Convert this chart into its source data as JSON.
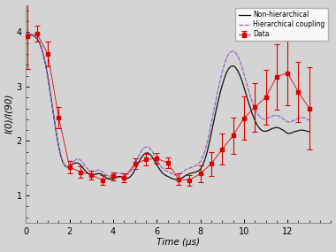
{
  "title": "",
  "xlabel": "Time (μs)",
  "ylabel": "I(0)/I(90)",
  "xlim": [
    0,
    14
  ],
  "ylim": [
    0.5,
    4.5
  ],
  "yticks": [
    1,
    2,
    3,
    4
  ],
  "xticks": [
    0,
    2,
    4,
    6,
    8,
    10,
    12
  ],
  "bg_color": "#d4d4d4",
  "hierarchical_color": "#9966bb",
  "nonhierarchical_color": "#111111",
  "data_color": "#dd0000",
  "data_x": [
    0.05,
    0.5,
    1.0,
    1.5,
    2.0,
    2.5,
    3.0,
    3.5,
    4.0,
    4.5,
    5.0,
    5.5,
    6.0,
    6.5,
    7.0,
    7.5,
    8.0,
    8.5,
    9.0,
    9.5,
    10.0,
    10.5,
    11.0,
    11.5,
    12.0,
    12.5,
    13.0
  ],
  "data_y": [
    3.92,
    3.97,
    3.6,
    2.43,
    1.52,
    1.43,
    1.38,
    1.28,
    1.35,
    1.33,
    1.58,
    1.66,
    1.68,
    1.6,
    1.3,
    1.28,
    1.4,
    1.58,
    1.85,
    2.1,
    2.42,
    2.62,
    2.8,
    3.18,
    3.25,
    2.9,
    2.6
  ],
  "data_yerr": [
    0.6,
    0.15,
    0.22,
    0.2,
    0.12,
    0.1,
    0.08,
    0.09,
    0.08,
    0.08,
    0.1,
    0.1,
    0.1,
    0.1,
    0.1,
    0.1,
    0.15,
    0.22,
    0.28,
    0.33,
    0.4,
    0.45,
    0.5,
    0.6,
    0.6,
    0.55,
    0.75
  ],
  "hier_x": [
    0.0,
    0.1,
    0.2,
    0.3,
    0.4,
    0.5,
    0.6,
    0.7,
    0.8,
    0.9,
    1.0,
    1.1,
    1.2,
    1.3,
    1.4,
    1.5,
    1.6,
    1.7,
    1.8,
    1.9,
    2.0,
    2.1,
    2.2,
    2.3,
    2.4,
    2.5,
    2.6,
    2.7,
    2.8,
    2.9,
    3.0,
    3.1,
    3.2,
    3.3,
    3.4,
    3.5,
    3.6,
    3.7,
    3.8,
    3.9,
    4.0,
    4.1,
    4.2,
    4.3,
    4.4,
    4.5,
    4.6,
    4.7,
    4.8,
    4.9,
    5.0,
    5.1,
    5.2,
    5.3,
    5.4,
    5.5,
    5.6,
    5.7,
    5.8,
    5.9,
    6.0,
    6.1,
    6.2,
    6.3,
    6.4,
    6.5,
    6.6,
    6.7,
    6.8,
    6.9,
    7.0,
    7.1,
    7.2,
    7.3,
    7.4,
    7.5,
    7.6,
    7.7,
    7.8,
    7.9,
    8.0,
    8.1,
    8.2,
    8.3,
    8.4,
    8.5,
    8.6,
    8.7,
    8.8,
    8.9,
    9.0,
    9.1,
    9.2,
    9.3,
    9.4,
    9.5,
    9.6,
    9.7,
    9.8,
    9.9,
    10.0,
    10.1,
    10.2,
    10.3,
    10.4,
    10.5,
    10.6,
    10.7,
    10.8,
    10.9,
    11.0,
    11.1,
    11.2,
    11.3,
    11.4,
    11.5,
    11.6,
    11.7,
    11.8,
    11.9,
    12.0,
    12.1,
    12.2,
    12.3,
    12.4,
    12.5,
    12.6,
    12.7,
    12.8,
    12.9,
    13.0
  ],
  "hier_y": [
    3.95,
    3.97,
    3.96,
    3.94,
    3.92,
    3.88,
    3.82,
    3.72,
    3.58,
    3.4,
    3.18,
    2.92,
    2.65,
    2.38,
    2.12,
    1.9,
    1.72,
    1.6,
    1.54,
    1.52,
    1.54,
    1.58,
    1.63,
    1.66,
    1.67,
    1.65,
    1.6,
    1.55,
    1.5,
    1.46,
    1.44,
    1.44,
    1.45,
    1.47,
    1.46,
    1.44,
    1.4,
    1.37,
    1.36,
    1.36,
    1.37,
    1.39,
    1.41,
    1.41,
    1.4,
    1.38,
    1.38,
    1.4,
    1.44,
    1.5,
    1.58,
    1.67,
    1.75,
    1.82,
    1.87,
    1.89,
    1.89,
    1.86,
    1.8,
    1.73,
    1.65,
    1.58,
    1.53,
    1.49,
    1.46,
    1.44,
    1.42,
    1.4,
    1.38,
    1.37,
    1.38,
    1.4,
    1.43,
    1.46,
    1.49,
    1.5,
    1.52,
    1.53,
    1.55,
    1.58,
    1.62,
    1.7,
    1.8,
    1.95,
    2.12,
    2.32,
    2.52,
    2.72,
    2.92,
    3.1,
    3.26,
    3.4,
    3.52,
    3.6,
    3.64,
    3.65,
    3.63,
    3.57,
    3.49,
    3.38,
    3.24,
    3.1,
    2.95,
    2.82,
    2.7,
    2.6,
    2.52,
    2.46,
    2.42,
    2.4,
    2.4,
    2.42,
    2.44,
    2.46,
    2.47,
    2.47,
    2.46,
    2.44,
    2.41,
    2.38,
    2.35,
    2.35,
    2.36,
    2.38,
    2.4,
    2.42,
    2.43,
    2.43,
    2.42,
    2.4,
    2.38
  ],
  "nonhier_x": [
    0.0,
    0.1,
    0.2,
    0.3,
    0.4,
    0.5,
    0.6,
    0.7,
    0.8,
    0.9,
    1.0,
    1.1,
    1.2,
    1.3,
    1.4,
    1.5,
    1.6,
    1.7,
    1.8,
    1.9,
    2.0,
    2.1,
    2.2,
    2.3,
    2.4,
    2.5,
    2.6,
    2.7,
    2.8,
    2.9,
    3.0,
    3.1,
    3.2,
    3.3,
    3.4,
    3.5,
    3.6,
    3.7,
    3.8,
    3.9,
    4.0,
    4.1,
    4.2,
    4.3,
    4.4,
    4.5,
    4.6,
    4.7,
    4.8,
    4.9,
    5.0,
    5.1,
    5.2,
    5.3,
    5.4,
    5.5,
    5.6,
    5.7,
    5.8,
    5.9,
    6.0,
    6.1,
    6.2,
    6.3,
    6.4,
    6.5,
    6.6,
    6.7,
    6.8,
    6.9,
    7.0,
    7.1,
    7.2,
    7.3,
    7.4,
    7.5,
    7.6,
    7.7,
    7.8,
    7.9,
    8.0,
    8.1,
    8.2,
    8.3,
    8.4,
    8.5,
    8.6,
    8.7,
    8.8,
    8.9,
    9.0,
    9.1,
    9.2,
    9.3,
    9.4,
    9.5,
    9.6,
    9.7,
    9.8,
    9.9,
    10.0,
    10.1,
    10.2,
    10.3,
    10.4,
    10.5,
    10.6,
    10.7,
    10.8,
    10.9,
    11.0,
    11.1,
    11.2,
    11.3,
    11.4,
    11.5,
    11.6,
    11.7,
    11.8,
    11.9,
    12.0,
    12.1,
    12.2,
    12.3,
    12.4,
    12.5,
    12.6,
    12.7,
    12.8,
    12.9,
    13.0
  ],
  "nonhier_y": [
    3.95,
    3.97,
    3.96,
    3.94,
    3.92,
    3.88,
    3.82,
    3.72,
    3.58,
    3.4,
    3.18,
    2.92,
    2.65,
    2.38,
    2.12,
    1.9,
    1.72,
    1.6,
    1.54,
    1.52,
    1.54,
    1.57,
    1.59,
    1.6,
    1.59,
    1.56,
    1.51,
    1.46,
    1.42,
    1.39,
    1.38,
    1.38,
    1.39,
    1.4,
    1.4,
    1.38,
    1.35,
    1.32,
    1.3,
    1.3,
    1.3,
    1.32,
    1.34,
    1.35,
    1.34,
    1.32,
    1.31,
    1.32,
    1.35,
    1.4,
    1.47,
    1.55,
    1.63,
    1.7,
    1.75,
    1.78,
    1.78,
    1.75,
    1.7,
    1.63,
    1.56,
    1.5,
    1.44,
    1.4,
    1.37,
    1.35,
    1.33,
    1.31,
    1.3,
    1.29,
    1.29,
    1.31,
    1.33,
    1.36,
    1.38,
    1.4,
    1.41,
    1.42,
    1.43,
    1.45,
    1.48,
    1.55,
    1.65,
    1.78,
    1.95,
    2.14,
    2.33,
    2.52,
    2.7,
    2.87,
    3.02,
    3.15,
    3.26,
    3.33,
    3.37,
    3.38,
    3.36,
    3.3,
    3.22,
    3.12,
    2.99,
    2.86,
    2.72,
    2.6,
    2.48,
    2.38,
    2.3,
    2.24,
    2.2,
    2.18,
    2.18,
    2.19,
    2.21,
    2.23,
    2.24,
    2.25,
    2.24,
    2.22,
    2.2,
    2.17,
    2.14,
    2.14,
    2.15,
    2.17,
    2.18,
    2.19,
    2.2,
    2.2,
    2.19,
    2.18,
    2.17
  ],
  "legend_loc": "upper right",
  "hier_label": "Hierarchical coupling",
  "nonhier_label": "Non-hierarchical",
  "data_label": "Data"
}
